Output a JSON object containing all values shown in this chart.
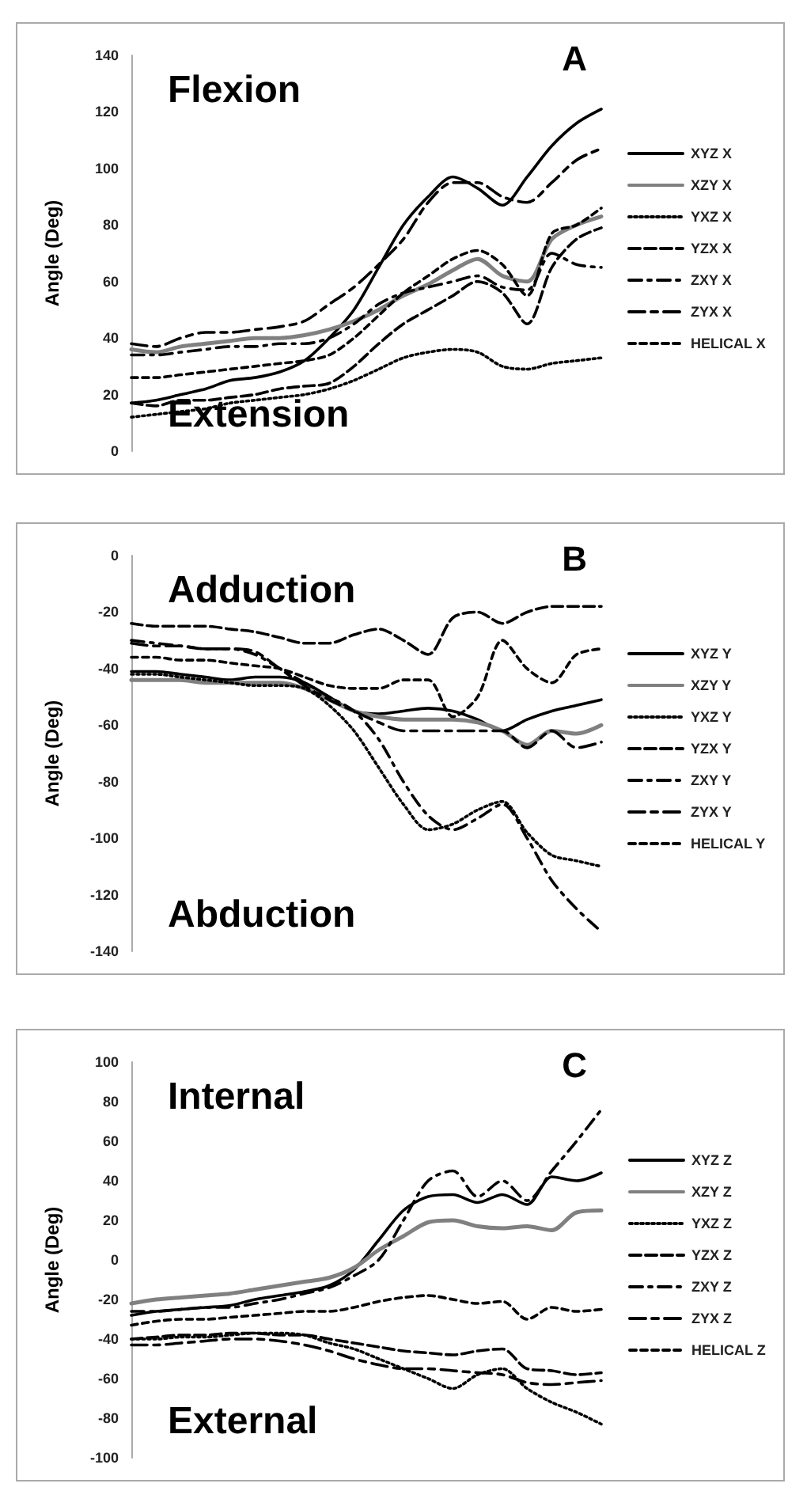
{
  "chart_data": [
    {
      "type": "line",
      "title": "A",
      "ylabel": "Angle (Deg)",
      "annotations": [
        "Flexion",
        "Extension"
      ],
      "categories": [
        null,
        null,
        null,
        null,
        null,
        null,
        null,
        null,
        null,
        null,
        null,
        null,
        null,
        null,
        null,
        null,
        null,
        null,
        null,
        null
      ],
      "ylim": [
        0,
        140
      ],
      "yticks": [
        0,
        20,
        40,
        60,
        80,
        100,
        120,
        140
      ],
      "grid": false,
      "legend": "right",
      "marker": "none",
      "tick_labels": "y",
      "series": [
        {
          "name": "XYZ X",
          "color": "#000000",
          "line_style": "solid",
          "values": [
            17,
            18,
            20,
            22,
            25,
            26,
            28,
            32,
            40,
            50,
            65,
            80,
            90,
            97,
            93,
            87,
            97,
            108,
            116,
            121
          ]
        },
        {
          "name": "XZY X",
          "color": "#808080",
          "line_style": "solid",
          "values": [
            36,
            35,
            37,
            38,
            39,
            40,
            40,
            41,
            43,
            46,
            50,
            55,
            59,
            64,
            68,
            62,
            60,
            75,
            80,
            83
          ]
        },
        {
          "name": "YXZ X",
          "color": "#000000",
          "line_style": "dotted",
          "values": [
            12,
            13,
            14,
            15,
            17,
            18,
            19,
            20,
            22,
            25,
            29,
            33,
            35,
            36,
            35,
            30,
            29,
            31,
            32,
            33
          ]
        },
        {
          "name": "YZX X",
          "color": "#000000",
          "line_style": "dashed",
          "values": [
            17,
            16,
            18,
            18,
            19,
            20,
            22,
            23,
            24,
            30,
            38,
            45,
            50,
            55,
            60,
            56,
            45,
            65,
            75,
            79
          ]
        },
        {
          "name": "ZXY X",
          "color": "#000000",
          "line_style": "dashed",
          "values": [
            34,
            34,
            35,
            36,
            37,
            37,
            38,
            38,
            40,
            45,
            52,
            56,
            58,
            60,
            62,
            58,
            57,
            70,
            66,
            65
          ]
        },
        {
          "name": "ZYX X",
          "color": "#000000",
          "line_style": "dashed",
          "values": [
            38,
            37,
            40,
            42,
            42,
            43,
            44,
            46,
            52,
            58,
            66,
            75,
            88,
            95,
            95,
            90,
            88,
            95,
            103,
            107
          ]
        },
        {
          "name": "HELICAL X",
          "color": "#000000",
          "line_style": "dashed",
          "values": [
            26,
            26,
            27,
            28,
            29,
            30,
            31,
            32,
            34,
            40,
            48,
            56,
            62,
            68,
            71,
            66,
            55,
            77,
            80,
            86
          ]
        }
      ]
    },
    {
      "type": "line",
      "title": "B",
      "ylabel": "Angle (Deg)",
      "annotations": [
        "Adduction",
        "Abduction"
      ],
      "categories": [
        null,
        null,
        null,
        null,
        null,
        null,
        null,
        null,
        null,
        null,
        null,
        null,
        null,
        null,
        null,
        null,
        null,
        null,
        null,
        null
      ],
      "ylim": [
        -140,
        0
      ],
      "yticks": [
        -140,
        -120,
        -100,
        -80,
        -60,
        -40,
        -20,
        0
      ],
      "grid": false,
      "legend": "right",
      "marker": "none",
      "tick_labels": "y",
      "series": [
        {
          "name": "XYZ Y",
          "color": "#000000",
          "line_style": "solid",
          "values": [
            -41,
            -41,
            -42,
            -43,
            -44,
            -43,
            -43,
            -45,
            -50,
            -55,
            -56,
            -55,
            -54,
            -55,
            -58,
            -62,
            -58,
            -55,
            -53,
            -51
          ]
        },
        {
          "name": "XZY Y",
          "color": "#808080",
          "line_style": "solid",
          "values": [
            -44,
            -44,
            -44,
            -45,
            -45,
            -45,
            -45,
            -47,
            -51,
            -55,
            -57,
            -58,
            -58,
            -58,
            -59,
            -62,
            -67,
            -62,
            -63,
            -60
          ]
        },
        {
          "name": "YXZ Y",
          "color": "#000000",
          "line_style": "dotted",
          "values": [
            -42,
            -42,
            -43,
            -44,
            -45,
            -46,
            -46,
            -47,
            -53,
            -62,
            -75,
            -88,
            -97,
            -95,
            -90,
            -87,
            -98,
            -106,
            -108,
            -110
          ]
        },
        {
          "name": "YZX Y",
          "color": "#000000",
          "line_style": "dashed",
          "values": [
            -24,
            -25,
            -25,
            -25,
            -26,
            -27,
            -29,
            -31,
            -31,
            -28,
            -26,
            -30,
            -35,
            -22,
            -20,
            -24,
            -20,
            -18,
            -18,
            -18
          ]
        },
        {
          "name": "ZXY Y",
          "color": "#000000",
          "line_style": "dashed",
          "values": [
            -30,
            -31,
            -32,
            -33,
            -33,
            -35,
            -40,
            -45,
            -50,
            -55,
            -65,
            -80,
            -92,
            -97,
            -93,
            -88,
            -100,
            -115,
            -125,
            -133
          ]
        },
        {
          "name": "ZYX Y",
          "color": "#000000",
          "line_style": "dashed",
          "values": [
            -31,
            -32,
            -32,
            -33,
            -33,
            -34,
            -40,
            -46,
            -51,
            -55,
            -59,
            -62,
            -62,
            -62,
            -62,
            -62,
            -68,
            -62,
            -68,
            -66
          ]
        },
        {
          "name": "HELICAL Y",
          "color": "#000000",
          "line_style": "dashed",
          "values": [
            -36,
            -36,
            -37,
            -37,
            -38,
            -39,
            -40,
            -43,
            -46,
            -47,
            -47,
            -44,
            -44,
            -57,
            -50,
            -30,
            -40,
            -45,
            -35,
            -33
          ]
        }
      ]
    },
    {
      "type": "line",
      "title": "C",
      "ylabel": "Angle (Deg)",
      "annotations": [
        "Internal",
        "External"
      ],
      "categories": [
        null,
        null,
        null,
        null,
        null,
        null,
        null,
        null,
        null,
        null,
        null,
        null,
        null,
        null,
        null,
        null,
        null,
        null,
        null,
        null
      ],
      "ylim": [
        -100,
        100
      ],
      "yticks": [
        -100,
        -80,
        -60,
        -40,
        -20,
        0,
        20,
        40,
        60,
        80,
        100
      ],
      "grid": false,
      "legend": "right",
      "marker": "none",
      "tick_labels": "y",
      "series": [
        {
          "name": "XYZ Z",
          "color": "#000000",
          "line_style": "solid",
          "values": [
            -28,
            -26,
            -25,
            -24,
            -23,
            -20,
            -18,
            -16,
            -13,
            -5,
            10,
            25,
            32,
            33,
            29,
            33,
            28,
            42,
            40,
            44
          ]
        },
        {
          "name": "XZY Z",
          "color": "#808080",
          "line_style": "solid",
          "values": [
            -22,
            -20,
            -19,
            -18,
            -17,
            -15,
            -13,
            -11,
            -9,
            -4,
            5,
            12,
            19,
            20,
            17,
            16,
            17,
            15,
            24,
            25
          ]
        },
        {
          "name": "YXZ Z",
          "color": "#000000",
          "line_style": "dotted",
          "values": [
            -40,
            -40,
            -39,
            -39,
            -38,
            -37,
            -37,
            -38,
            -42,
            -45,
            -50,
            -55,
            -60,
            -65,
            -58,
            -55,
            -65,
            -72,
            -77,
            -83
          ]
        },
        {
          "name": "YZX Z",
          "color": "#000000",
          "line_style": "dashed",
          "values": [
            -40,
            -39,
            -38,
            -38,
            -37,
            -37,
            -38,
            -38,
            -40,
            -42,
            -44,
            -46,
            -47,
            -48,
            -46,
            -45,
            -55,
            -56,
            -58,
            -57
          ]
        },
        {
          "name": "ZXY Z",
          "color": "#000000",
          "line_style": "dashed",
          "values": [
            -26,
            -26,
            -25,
            -24,
            -24,
            -22,
            -20,
            -17,
            -14,
            -8,
            0,
            20,
            40,
            45,
            32,
            40,
            30,
            45,
            60,
            76
          ]
        },
        {
          "name": "ZYX Z",
          "color": "#000000",
          "line_style": "dashed",
          "values": [
            -43,
            -43,
            -42,
            -41,
            -40,
            -40,
            -41,
            -43,
            -46,
            -50,
            -53,
            -55,
            -55,
            -56,
            -57,
            -58,
            -62,
            -63,
            -62,
            -61
          ]
        },
        {
          "name": "HELICAL Z",
          "color": "#000000",
          "line_style": "dashed",
          "values": [
            -33,
            -31,
            -30,
            -30,
            -29,
            -28,
            -27,
            -26,
            -26,
            -24,
            -21,
            -19,
            -18,
            -20,
            -22,
            -21,
            -30,
            -24,
            -26,
            -25
          ]
        }
      ]
    }
  ]
}
